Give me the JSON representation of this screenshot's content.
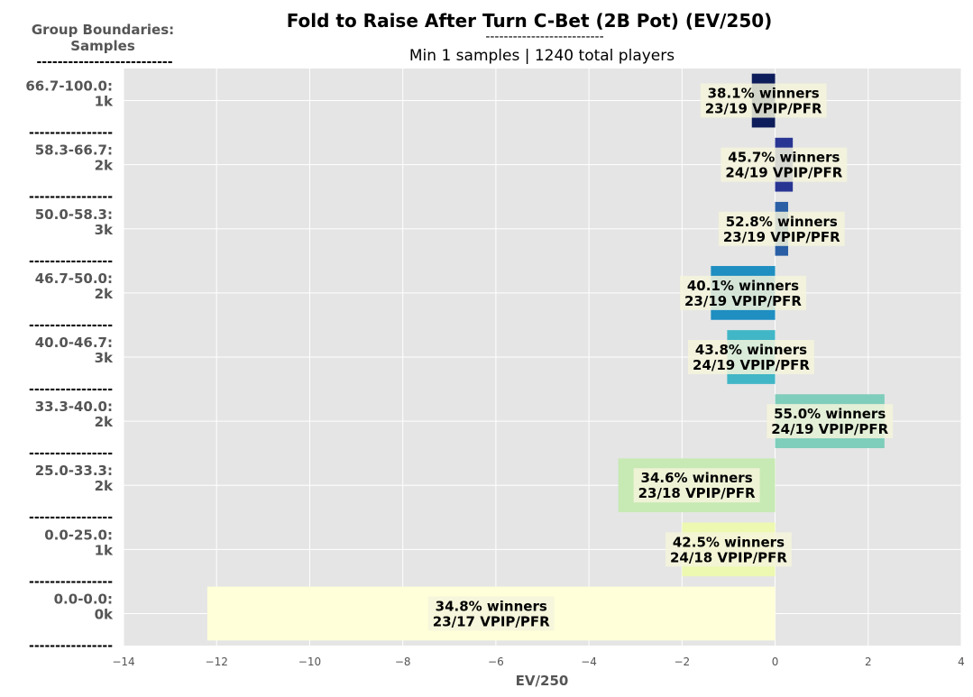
{
  "chart_data": {
    "type": "bar",
    "orientation": "horizontal",
    "title": "Fold to Raise After Turn C-Bet (2B Pot) (EV/250)",
    "title_underline": "--------------------------",
    "subtitle": "Min 1 samples | 1240 total players",
    "group_header": [
      "Group Boundaries:",
      "Samples",
      "--------------------------"
    ],
    "separator": "----------------",
    "xlabel": "EV/250",
    "xlim": [
      -14,
      4
    ],
    "xticks": [
      -14,
      -12,
      -10,
      -8,
      -6,
      -4,
      -2,
      0,
      2,
      4
    ],
    "xtick_labels": [
      "−14",
      "−12",
      "−10",
      "−8",
      "−6",
      "−4",
      "−2",
      "0",
      "2",
      "4"
    ],
    "grid": true,
    "background": "#e5e5e5",
    "categories": [
      {
        "range": "66.7-100.0:",
        "samples": "1k",
        "value": -0.5,
        "color": "#0d1c5a",
        "label1": "38.1% winners",
        "label2": "23/19 VPIP/PFR"
      },
      {
        "range": "58.3-66.7:",
        "samples": "2k",
        "value": 0.38,
        "color": "#283593",
        "label1": "45.7% winners",
        "label2": "24/19 VPIP/PFR"
      },
      {
        "range": "50.0-58.3:",
        "samples": "3k",
        "value": 0.28,
        "color": "#2a5fa6",
        "label1": "52.8% winners",
        "label2": "23/19 VPIP/PFR"
      },
      {
        "range": "46.7-50.0:",
        "samples": "2k",
        "value": -1.38,
        "color": "#1f8ec1",
        "label1": "40.1% winners",
        "label2": "23/19 VPIP/PFR"
      },
      {
        "range": "40.0-46.7:",
        "samples": "3k",
        "value": -1.03,
        "color": "#41b6c6",
        "label1": "43.8% winners",
        "label2": "24/19 VPIP/PFR"
      },
      {
        "range": "33.3-40.0:",
        "samples": "2k",
        "value": 2.35,
        "color": "#7fcdbb",
        "label1": "55.0% winners",
        "label2": "24/19 VPIP/PFR"
      },
      {
        "range": "25.0-33.3:",
        "samples": "2k",
        "value": -3.37,
        "color": "#c7e9b4",
        "label1": "34.6% winners",
        "label2": "23/18 VPIP/PFR"
      },
      {
        "range": "0.0-25.0:",
        "samples": "1k",
        "value": -2.0,
        "color": "#edf8b1",
        "label1": "42.5% winners",
        "label2": "24/18 VPIP/PFR"
      },
      {
        "range": "0.0-0.0:",
        "samples": "0k",
        "value": -12.2,
        "color": "#ffffd9",
        "label1": "34.8% winners",
        "label2": "23/17 VPIP/PFR"
      }
    ]
  }
}
